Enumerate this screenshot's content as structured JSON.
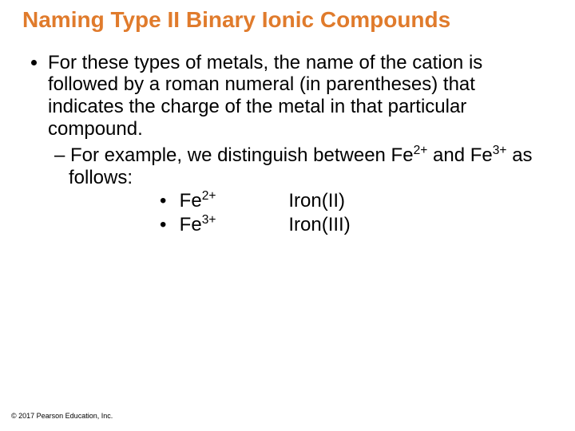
{
  "title": {
    "text": "Naming Type II Binary Ionic Compounds",
    "color": "#e07b2c"
  },
  "body_color": "#000000",
  "main_bullet": "For these types of metals, the name of the cation is followed by a roman numeral (in parentheses) that indicates the charge of the metal in that particular compound.",
  "sub_prefix": "– ",
  "sub_text_before": "For example, we distinguish between Fe",
  "sub_sup1": "2+",
  "sub_text_mid": " and Fe",
  "sub_sup2": "3+",
  "sub_text_after": " as follows:",
  "ex1": {
    "bullet": "•",
    "ion_base": "Fe",
    "ion_sup": "2+",
    "name": "Iron(II)"
  },
  "ex2": {
    "bullet": "•",
    "ion_base": "Fe",
    "ion_sup": "3+",
    "name": "Iron(III)"
  },
  "footer": "© 2017 Pearson Education, Inc."
}
